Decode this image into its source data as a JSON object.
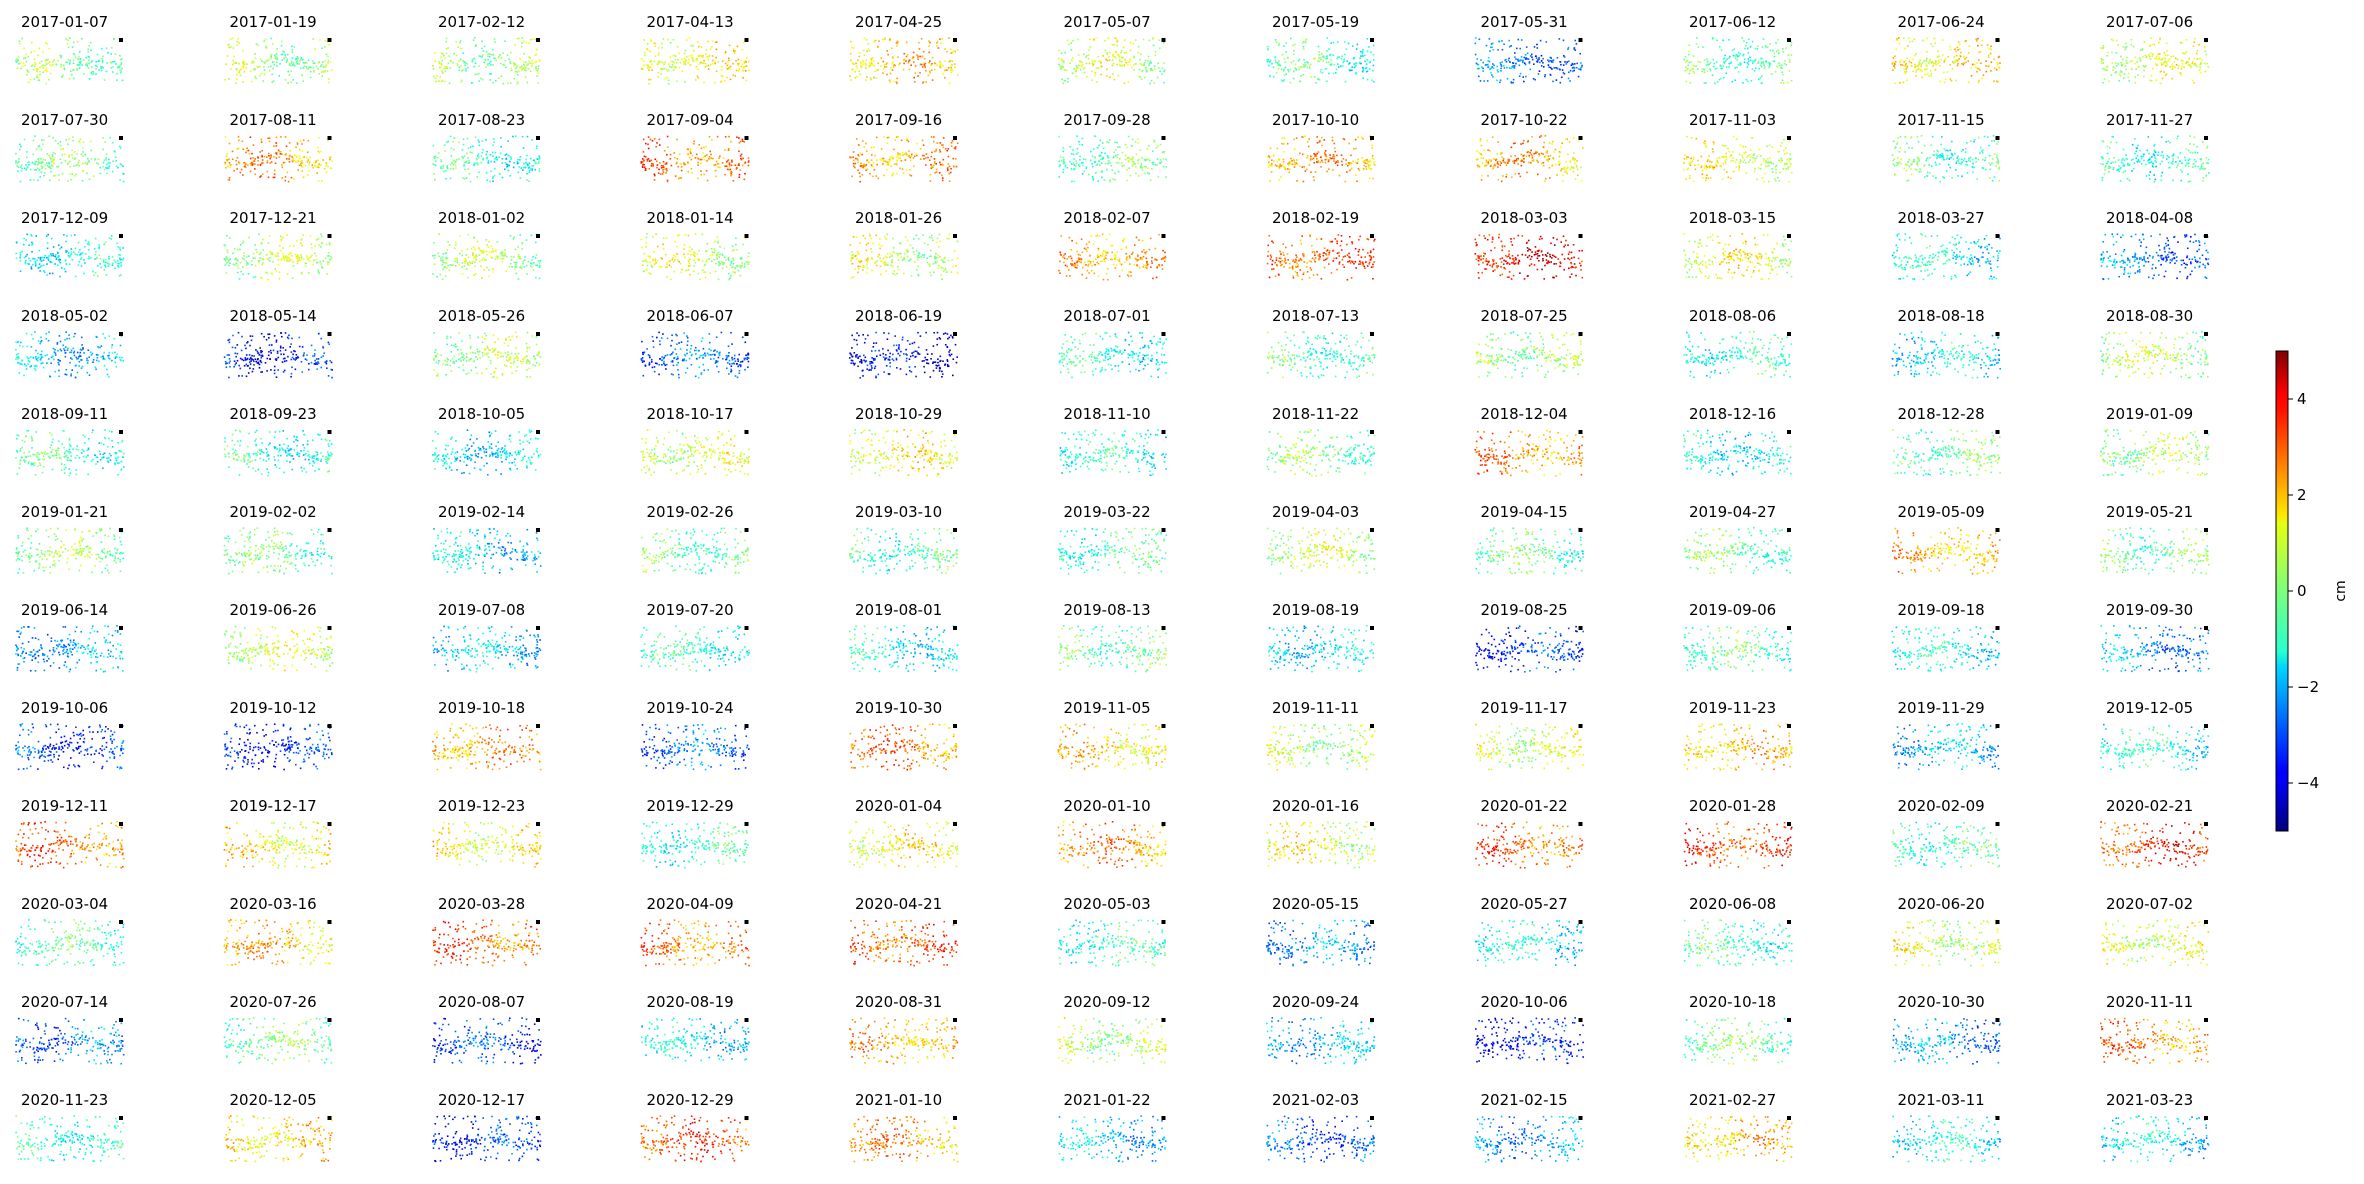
{
  "chart_data": {
    "type": "scatter",
    "layout": "small-multiples grid, 11 columns x 12 rows",
    "panel_titles": [
      "2017-01-07",
      "2017-01-19",
      "2017-02-12",
      "2017-04-13",
      "2017-04-25",
      "2017-05-07",
      "2017-05-19",
      "2017-05-31",
      "2017-06-12",
      "2017-06-24",
      "2017-07-06",
      "2017-07-30",
      "2017-08-11",
      "2017-08-23",
      "2017-09-04",
      "2017-09-16",
      "2017-09-28",
      "2017-10-10",
      "2017-10-22",
      "2017-11-03",
      "2017-11-15",
      "2017-11-27",
      "2017-12-09",
      "2017-12-21",
      "2018-01-02",
      "2018-01-14",
      "2018-01-26",
      "2018-02-07",
      "2018-02-19",
      "2018-03-03",
      "2018-03-15",
      "2018-03-27",
      "2018-04-08",
      "2018-05-02",
      "2018-05-14",
      "2018-05-26",
      "2018-06-07",
      "2018-06-19",
      "2018-07-01",
      "2018-07-13",
      "2018-07-25",
      "2018-08-06",
      "2018-08-18",
      "2018-08-30",
      "2018-09-11",
      "2018-09-23",
      "2018-10-05",
      "2018-10-17",
      "2018-10-29",
      "2018-11-10",
      "2018-11-22",
      "2018-12-04",
      "2018-12-16",
      "2018-12-28",
      "2019-01-09",
      "2019-01-21",
      "2019-02-02",
      "2019-02-14",
      "2019-02-26",
      "2019-03-10",
      "2019-03-22",
      "2019-04-03",
      "2019-04-15",
      "2019-04-27",
      "2019-05-09",
      "2019-05-21",
      "2019-06-14",
      "2019-06-26",
      "2019-07-08",
      "2019-07-20",
      "2019-08-01",
      "2019-08-13",
      "2019-08-19",
      "2019-08-25",
      "2019-09-06",
      "2019-09-18",
      "2019-09-30",
      "2019-10-06",
      "2019-10-12",
      "2019-10-18",
      "2019-10-24",
      "2019-10-30",
      "2019-11-05",
      "2019-11-11",
      "2019-11-17",
      "2019-11-23",
      "2019-11-29",
      "2019-12-05",
      "2019-12-11",
      "2019-12-17",
      "2019-12-23",
      "2019-12-29",
      "2020-01-04",
      "2020-01-10",
      "2020-01-16",
      "2020-01-22",
      "2020-01-28",
      "2020-02-09",
      "2020-02-21",
      "2020-03-04",
      "2020-03-16",
      "2020-03-28",
      "2020-04-09",
      "2020-04-21",
      "2020-05-03",
      "2020-05-15",
      "2020-05-27",
      "2020-06-08",
      "2020-06-20",
      "2020-07-02",
      "2020-07-14",
      "2020-07-26",
      "2020-08-07",
      "2020-08-19",
      "2020-08-31",
      "2020-09-12",
      "2020-09-24",
      "2020-10-06",
      "2020-10-18",
      "2020-10-30",
      "2020-11-11",
      "2020-11-23",
      "2020-12-05",
      "2020-12-17",
      "2020-12-29",
      "2021-01-10",
      "2021-01-22",
      "2021-02-03",
      "2021-02-15",
      "2021-02-27",
      "2021-03-11",
      "2021-03-23"
    ],
    "panel_mean_cm": [
      0,
      0.3,
      0.2,
      1.2,
      1.8,
      0.6,
      -0.6,
      -2.6,
      -0.4,
      1.5,
      0.8,
      -0.2,
      2.2,
      -0.8,
      2.6,
      2.2,
      -0.3,
      2.1,
      2,
      1,
      -0.5,
      -0.8,
      -1.2,
      0.4,
      0.3,
      0.8,
      0.7,
      2.2,
      3,
      3.8,
      1,
      -1.2,
      -2.6,
      -1.8,
      -3.4,
      0.4,
      -2.8,
      -3.8,
      -1,
      -0.5,
      0.2,
      -0.8,
      -1.5,
      0.4,
      -0.7,
      -0.9,
      -1.5,
      0.8,
      1.2,
      -1,
      -0.1,
      2.4,
      -1.2,
      -0.2,
      0.3,
      0.1,
      -0.3,
      -1.6,
      -0.2,
      -0.6,
      -0.6,
      0.5,
      -0.4,
      -0.3,
      2,
      -0.2,
      -2.1,
      0.7,
      -1.8,
      -0.9,
      -1.2,
      -0.2,
      -1.5,
      -3.2,
      -0.4,
      -1.2,
      -2.3,
      -3.1,
      -3.3,
      2.2,
      -2.7,
      2.5,
      1.6,
      0.4,
      0.8,
      1.8,
      -2,
      -1,
      2.6,
      1.4,
      1.2,
      -0.8,
      1.2,
      2.3,
      1,
      2.8,
      3.2,
      -0.5,
      3.2,
      -0.6,
      1.8,
      2.8,
      2.5,
      3,
      -0.8,
      -2.3,
      -1.3,
      -0.7,
      0.8,
      0.9,
      -2.6,
      -0.2,
      -3.2,
      -1.5,
      2,
      0.5,
      -1.9,
      -3.6,
      -0.2,
      -2.2,
      2.5,
      -0.8,
      1.6,
      -3.3,
      3,
      2.2,
      -1.7,
      -2.9,
      -2.2,
      1.8,
      -1.3,
      -1.5
    ],
    "reference_point": "black square (top-right of each panel)",
    "color_scale": {
      "colormap": "jet",
      "vmin": -5,
      "vmax": 5,
      "ticks": [
        -4,
        -2,
        0,
        2,
        4
      ],
      "tick_labels": [
        "−4",
        "−2",
        "0",
        "2",
        "4"
      ],
      "label": "cm",
      "placement": "right"
    },
    "grid": false,
    "axes_visible": false
  }
}
